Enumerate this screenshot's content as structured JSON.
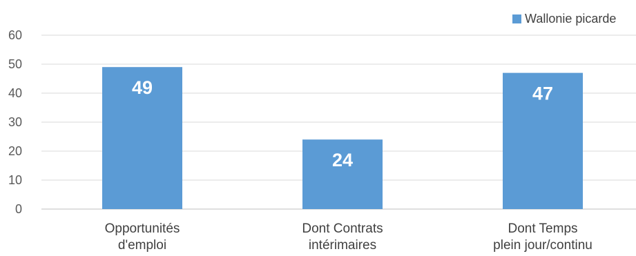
{
  "chart_data": {
    "type": "bar",
    "categories": [
      [
        "Opportunités",
        "d'emploi"
      ],
      [
        "Dont Contrats",
        "intérimaires"
      ],
      [
        "Dont Temps",
        "plein jour/continu"
      ]
    ],
    "series": [
      {
        "name": "Wallonie picarde",
        "values": [
          49,
          24,
          47
        ],
        "color": "#5B9BD5"
      }
    ],
    "ylim": [
      0,
      60
    ],
    "yticks": [
      0,
      10,
      20,
      30,
      40,
      50,
      60
    ],
    "grid": true,
    "legend": "top-right",
    "data_labels": true
  }
}
